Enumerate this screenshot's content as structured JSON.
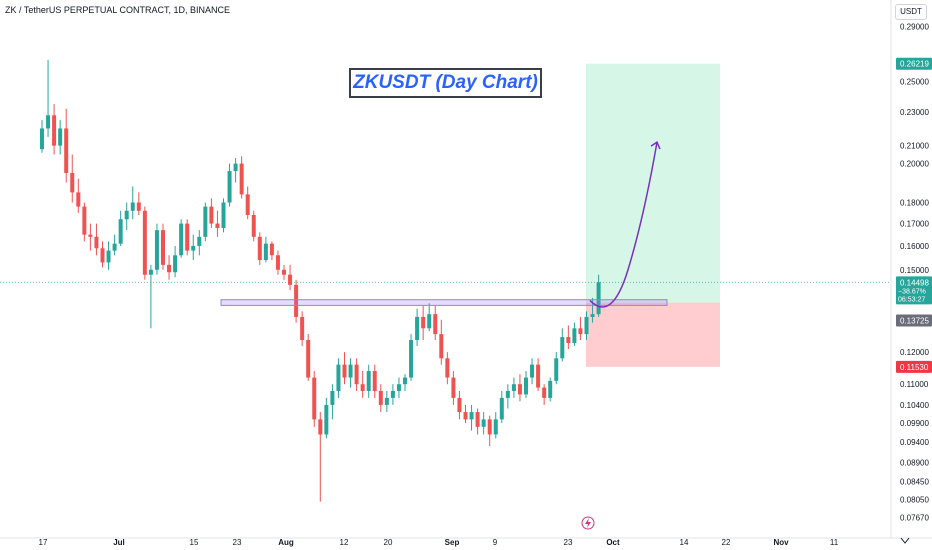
{
  "header": {
    "symbol": "ZK / TetherUS PERPETUAL CONTRACT, 1D, BINANCE"
  },
  "axis_unit": "USDT",
  "countdown": "06:53:27",
  "change_pct": "−38.67%",
  "colors": {
    "up": "#26a69a",
    "down": "#ef5350",
    "profit_zone": "#d6f7e8",
    "loss_zone": "#ffcdd0",
    "box": "#9b7de0",
    "arrow": "#7b2fbf",
    "title": "#2962ff",
    "price_line": "#26a69a"
  },
  "chart_data": {
    "type": "candlestick",
    "title": "ZKUSDT (Day Chart)",
    "y_scale": "log",
    "ylim": [
      0.0745,
      0.3
    ],
    "x_ticks": [
      "17",
      "Jul",
      "15",
      "23",
      "Aug",
      "12",
      "20",
      "Sep",
      "9",
      "23",
      "Oct",
      "14",
      "22",
      "Nov",
      "11"
    ],
    "y_ticks": [
      "0.29000",
      "0.25000",
      "0.23000",
      "0.21000",
      "0.20000",
      "0.18000",
      "0.17000",
      "0.16000",
      "0.15000",
      "0.13000",
      "0.12000",
      "0.11000",
      "0.10400",
      "0.09900",
      "0.09400",
      "0.08900",
      "0.08450",
      "0.08050",
      "0.07670"
    ],
    "price_labels": [
      {
        "label": "0.26219",
        "value": 0.26219,
        "color": "#26a69a"
      },
      {
        "label": "0.14498",
        "value": 0.14498,
        "color": "#26a69a"
      },
      {
        "label": "0.13725",
        "value": 0.13725,
        "color": "#6a6d78"
      },
      {
        "label": "0.11530",
        "value": 0.1153,
        "color": "#f23645"
      }
    ],
    "annotations": {
      "support_box": {
        "low": 0.1362,
        "high": 0.1383
      },
      "long_position": {
        "entry": 0.13725,
        "target": 0.26219,
        "stop": 0.1153
      }
    },
    "candles": [
      [
        0.208,
        0.225,
        0.206,
        0.22
      ],
      [
        0.22,
        0.265,
        0.215,
        0.228
      ],
      [
        0.228,
        0.235,
        0.205,
        0.21
      ],
      [
        0.21,
        0.225,
        0.205,
        0.22
      ],
      [
        0.22,
        0.232,
        0.19,
        0.195
      ],
      [
        0.195,
        0.205,
        0.18,
        0.185
      ],
      [
        0.185,
        0.192,
        0.175,
        0.178
      ],
      [
        0.178,
        0.18,
        0.162,
        0.165
      ],
      [
        0.165,
        0.17,
        0.158,
        0.164
      ],
      [
        0.164,
        0.17,
        0.156,
        0.159
      ],
      [
        0.159,
        0.162,
        0.151,
        0.153
      ],
      [
        0.153,
        0.162,
        0.15,
        0.158
      ],
      [
        0.158,
        0.165,
        0.156,
        0.161
      ],
      [
        0.161,
        0.176,
        0.16,
        0.172
      ],
      [
        0.172,
        0.18,
        0.167,
        0.176
      ],
      [
        0.176,
        0.188,
        0.172,
        0.18
      ],
      [
        0.18,
        0.185,
        0.174,
        0.176
      ],
      [
        0.176,
        0.178,
        0.146,
        0.148
      ],
      [
        0.148,
        0.152,
        0.128,
        0.15
      ],
      [
        0.15,
        0.17,
        0.148,
        0.167
      ],
      [
        0.167,
        0.17,
        0.15,
        0.152
      ],
      [
        0.152,
        0.156,
        0.146,
        0.149
      ],
      [
        0.149,
        0.16,
        0.147,
        0.156
      ],
      [
        0.156,
        0.172,
        0.155,
        0.17
      ],
      [
        0.17,
        0.172,
        0.156,
        0.158
      ],
      [
        0.158,
        0.165,
        0.154,
        0.16
      ],
      [
        0.16,
        0.167,
        0.156,
        0.164
      ],
      [
        0.164,
        0.18,
        0.162,
        0.178
      ],
      [
        0.178,
        0.182,
        0.168,
        0.17
      ],
      [
        0.17,
        0.176,
        0.164,
        0.168
      ],
      [
        0.168,
        0.182,
        0.166,
        0.18
      ],
      [
        0.18,
        0.2,
        0.178,
        0.196
      ],
      [
        0.196,
        0.203,
        0.19,
        0.2
      ],
      [
        0.2,
        0.204,
        0.182,
        0.184
      ],
      [
        0.184,
        0.188,
        0.172,
        0.174
      ],
      [
        0.174,
        0.176,
        0.162,
        0.164
      ],
      [
        0.164,
        0.166,
        0.152,
        0.154
      ],
      [
        0.154,
        0.164,
        0.153,
        0.161
      ],
      [
        0.161,
        0.162,
        0.154,
        0.156
      ],
      [
        0.156,
        0.158,
        0.148,
        0.15
      ],
      [
        0.15,
        0.152,
        0.146,
        0.148
      ],
      [
        0.148,
        0.152,
        0.142,
        0.144
      ],
      [
        0.144,
        0.146,
        0.13,
        0.132
      ],
      [
        0.132,
        0.134,
        0.122,
        0.124
      ],
      [
        0.124,
        0.126,
        0.111,
        0.112
      ],
      [
        0.112,
        0.114,
        0.098,
        0.1
      ],
      [
        0.1,
        0.102,
        0.08,
        0.096
      ],
      [
        0.096,
        0.106,
        0.095,
        0.104
      ],
      [
        0.104,
        0.11,
        0.1,
        0.108
      ],
      [
        0.108,
        0.118,
        0.106,
        0.116
      ],
      [
        0.116,
        0.12,
        0.11,
        0.112
      ],
      [
        0.112,
        0.118,
        0.109,
        0.116
      ],
      [
        0.116,
        0.118,
        0.108,
        0.11
      ],
      [
        0.11,
        0.114,
        0.106,
        0.108
      ],
      [
        0.108,
        0.116,
        0.106,
        0.114
      ],
      [
        0.114,
        0.116,
        0.106,
        0.108
      ],
      [
        0.108,
        0.11,
        0.102,
        0.104
      ],
      [
        0.104,
        0.108,
        0.102,
        0.106
      ],
      [
        0.106,
        0.11,
        0.104,
        0.108
      ],
      [
        0.108,
        0.112,
        0.106,
        0.11
      ],
      [
        0.11,
        0.113,
        0.108,
        0.112
      ],
      [
        0.112,
        0.126,
        0.111,
        0.124
      ],
      [
        0.124,
        0.135,
        0.122,
        0.132
      ],
      [
        0.132,
        0.136,
        0.124,
        0.128
      ],
      [
        0.128,
        0.137,
        0.127,
        0.133
      ],
      [
        0.133,
        0.136,
        0.124,
        0.126
      ],
      [
        0.126,
        0.131,
        0.116,
        0.118
      ],
      [
        0.118,
        0.12,
        0.11,
        0.112
      ],
      [
        0.112,
        0.114,
        0.104,
        0.106
      ],
      [
        0.106,
        0.108,
        0.1,
        0.102
      ],
      [
        0.102,
        0.104,
        0.099,
        0.1
      ],
      [
        0.1,
        0.104,
        0.097,
        0.102
      ],
      [
        0.102,
        0.103,
        0.096,
        0.098
      ],
      [
        0.098,
        0.102,
        0.096,
        0.1
      ],
      [
        0.1,
        0.101,
        0.093,
        0.096
      ],
      [
        0.096,
        0.102,
        0.095,
        0.1
      ],
      [
        0.1,
        0.108,
        0.099,
        0.106
      ],
      [
        0.106,
        0.11,
        0.103,
        0.108
      ],
      [
        0.108,
        0.112,
        0.106,
        0.11
      ],
      [
        0.11,
        0.113,
        0.105,
        0.107
      ],
      [
        0.107,
        0.114,
        0.106,
        0.112
      ],
      [
        0.112,
        0.118,
        0.11,
        0.116
      ],
      [
        0.116,
        0.118,
        0.108,
        0.109
      ],
      [
        0.109,
        0.11,
        0.104,
        0.106
      ],
      [
        0.106,
        0.112,
        0.105,
        0.111
      ],
      [
        0.111,
        0.12,
        0.11,
        0.118
      ],
      [
        0.118,
        0.128,
        0.117,
        0.125
      ],
      [
        0.125,
        0.129,
        0.121,
        0.123
      ],
      [
        0.123,
        0.13,
        0.122,
        0.128
      ],
      [
        0.128,
        0.132,
        0.124,
        0.126
      ],
      [
        0.126,
        0.134,
        0.124,
        0.132
      ],
      [
        0.132,
        0.139,
        0.13,
        0.133
      ],
      [
        0.133,
        0.148,
        0.132,
        0.145
      ]
    ]
  }
}
